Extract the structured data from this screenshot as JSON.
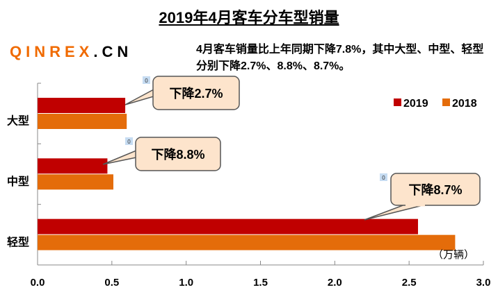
{
  "chart_data": {
    "type": "bar",
    "orientation": "horizontal",
    "title": "2019年4月客车分车型销量",
    "subtitle": "4月客车销量比上年同期下降7.8%，其中大型、中型、轻型分别下降2.7%、8.8%、8.7%。",
    "categories": [
      "大型",
      "中型",
      "轻型"
    ],
    "series": [
      {
        "name": "2019",
        "color": "#c00000",
        "values": [
          0.59,
          0.47,
          2.56
        ]
      },
      {
        "name": "2018",
        "color": "#e46c0a",
        "values": [
          0.6,
          0.51,
          2.81
        ]
      }
    ],
    "xlim": [
      0,
      3.0
    ],
    "xticks": [
      "0.0",
      "0.5",
      "1.0",
      "1.5",
      "2.0",
      "2.5",
      "3.0"
    ],
    "unit_label": "（万辆）",
    "legend_position": "top-right",
    "annotations": [
      {
        "text": "下降2.7%",
        "marker": "0"
      },
      {
        "text": "下降8.8%",
        "marker": "0"
      },
      {
        "text": "下降8.7%",
        "marker": "0"
      }
    ],
    "grid": false
  },
  "watermark": {
    "orange": "QINREX",
    "black": ".CN"
  }
}
